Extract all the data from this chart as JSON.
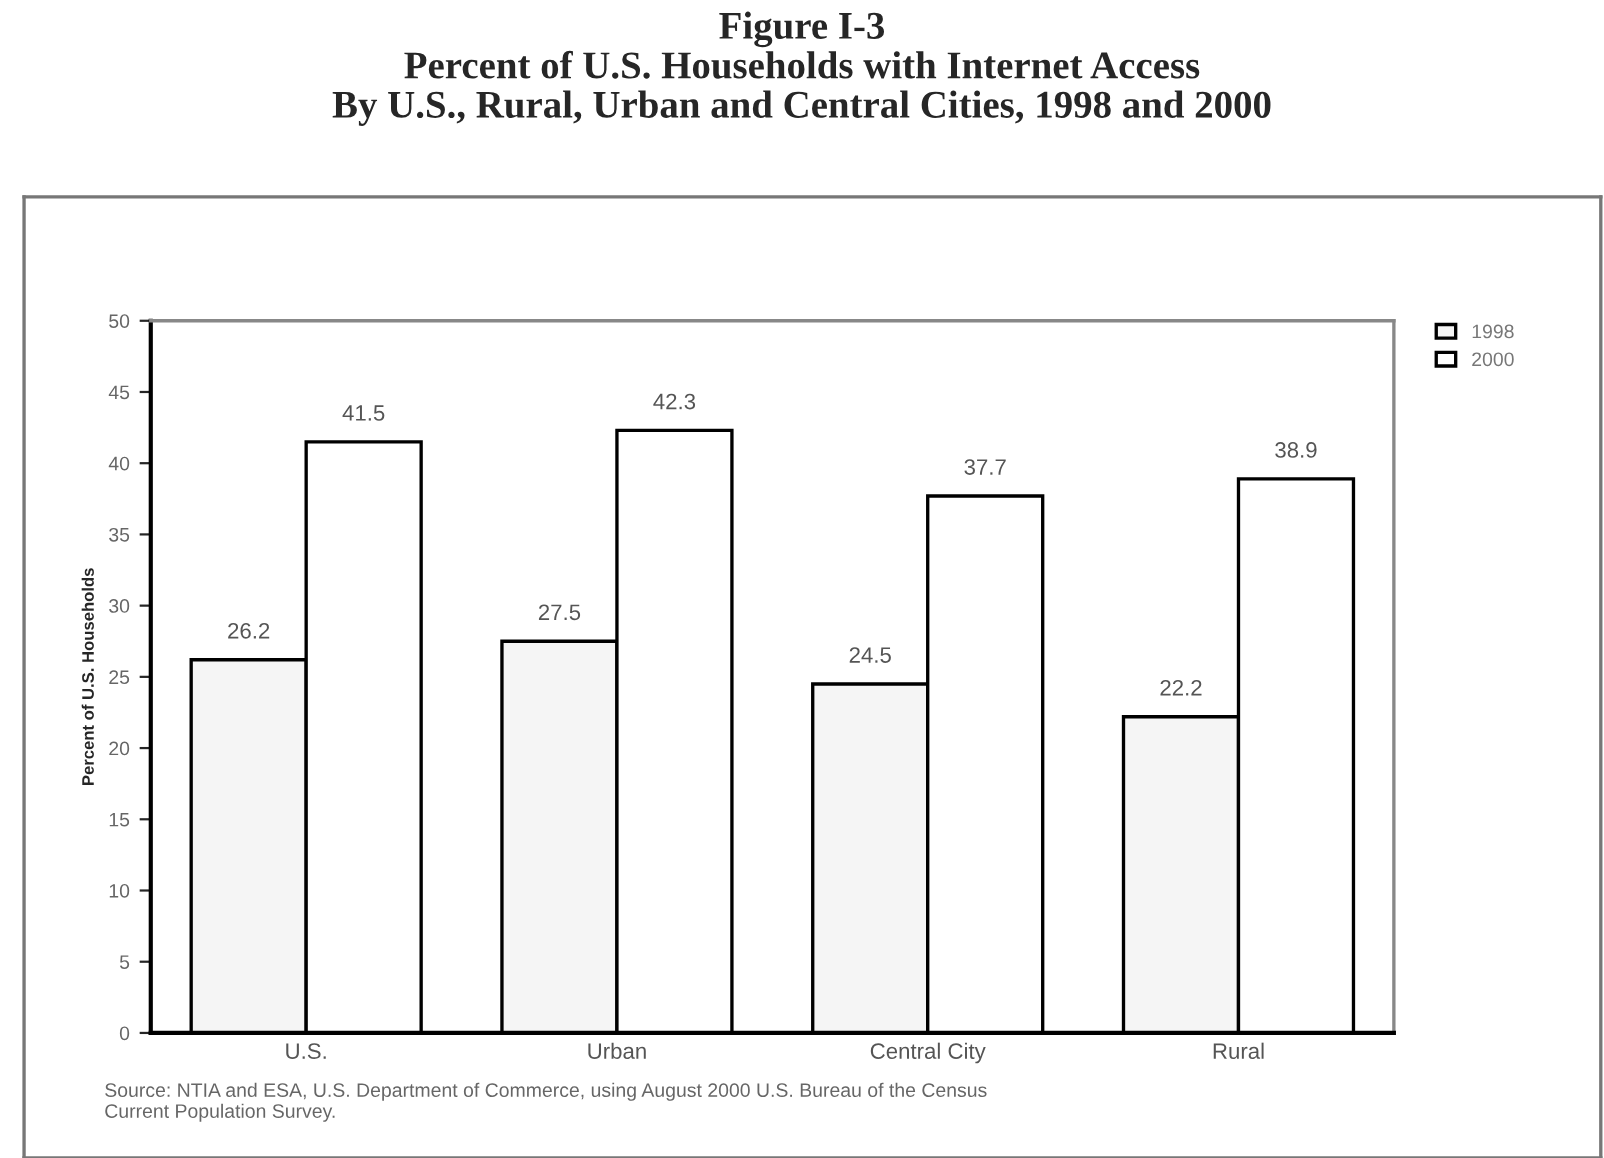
{
  "chart_data": {
    "type": "bar",
    "title": "Figure I-3\nPercent of U.S. Households with Internet Access\nBy U.S., Rural, Urban and Central Cities, 1998 and 2000",
    "ylabel": "Percent of U.S. Households",
    "categories": [
      "U.S.",
      "Urban",
      "Central City",
      "Rural"
    ],
    "series": [
      {
        "name": "1998",
        "color": "#f5f5f5",
        "values": [
          26.2,
          27.5,
          24.5,
          22.2
        ]
      },
      {
        "name": "2000",
        "color": "#ffffff",
        "values": [
          41.5,
          42.3,
          37.7,
          38.9
        ]
      }
    ],
    "ylim": [
      0,
      50
    ],
    "yticks": [
      0,
      5,
      10,
      15,
      20,
      25,
      30,
      35,
      40,
      45,
      50
    ],
    "data_labels": true,
    "grid": false,
    "legend": "top right",
    "annotations": [
      "Source: NTIA and ESA, U.S. Department of Commerce, using August 2000 U.S. Bureau of the Census\nCurrent Population Survey."
    ]
  }
}
